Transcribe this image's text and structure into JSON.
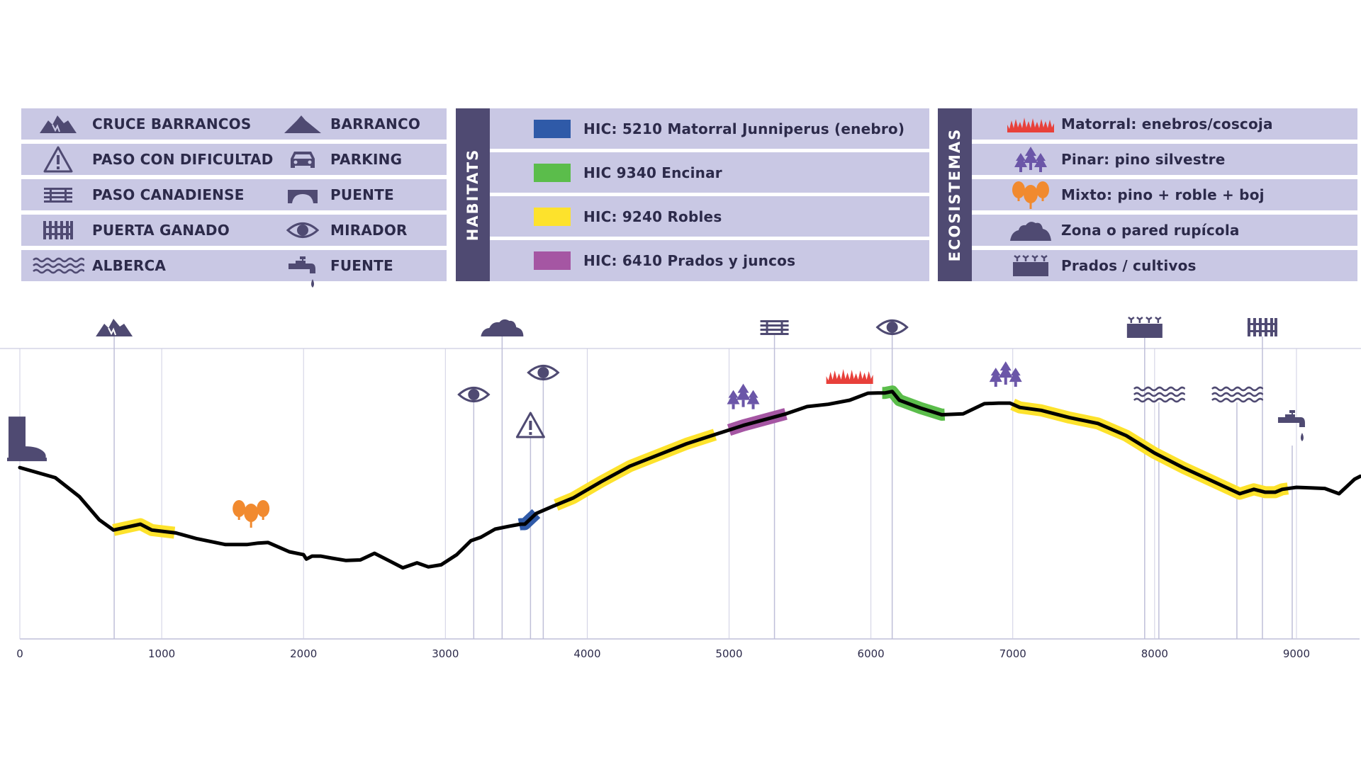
{
  "colors": {
    "panel": "#c9c8e4",
    "tab": "#4f4a72",
    "icon": "#4f4a72",
    "profile": "#000000",
    "robles": "#fde22c",
    "encinar": "#5bbd4b",
    "matorral_juniperus": "#2f5aa8",
    "prados_juncos": "#a556a3",
    "matorral_eco": "#e8403a",
    "mixto": "#f18a2f",
    "grid": "#bfbfd8"
  },
  "legend_points": [
    {
      "icon": "cruce-barrancos-icon",
      "label": "CRUCE BARRANCOS"
    },
    {
      "icon": "paso-dificultad-icon",
      "label": "PASO CON DIFICULTAD"
    },
    {
      "icon": "paso-canadiense-icon",
      "label": "PASO CANADIENSE"
    },
    {
      "icon": "puerta-ganado-icon",
      "label": "PUERTA GANADO"
    },
    {
      "icon": "alberca-icon",
      "label": "ALBERCA"
    },
    {
      "icon": "barranco-icon",
      "label": "BARRANCO"
    },
    {
      "icon": "parking-icon",
      "label": "PARKING"
    },
    {
      "icon": "puente-icon",
      "label": "PUENTE"
    },
    {
      "icon": "mirador-icon",
      "label": "MIRADOR"
    },
    {
      "icon": "fuente-icon",
      "label": "FUENTE"
    }
  ],
  "habitats": {
    "title": "HABITATS",
    "items": [
      {
        "label": "HIC: 5210 Matorral Junniperus (enebro)",
        "color": "#2f5aa8"
      },
      {
        "label": "HIC 9340 Encinar",
        "color": "#5bbd4b"
      },
      {
        "label": "HIC: 9240 Robles",
        "color": "#fde22c"
      },
      {
        "label": "HIC: 6410 Prados y juncos",
        "color": "#a556a3"
      }
    ]
  },
  "ecosistemas": {
    "title": "ECOSISTEMAS",
    "items": [
      {
        "icon": "matorral-icon",
        "label": "Matorral: enebros/coscoja"
      },
      {
        "icon": "pinar-icon",
        "label": "Pinar: pino silvestre"
      },
      {
        "icon": "mixto-icon",
        "label": "Mixto: pino + roble + boj"
      },
      {
        "icon": "rupicola-icon",
        "label": "Zona o pared rupícola"
      },
      {
        "icon": "prados-icon",
        "label": "Prados / cultivos"
      }
    ]
  },
  "chart_data": {
    "type": "line",
    "title": "",
    "xlabel": "",
    "ylabel": "",
    "xlim": [
      0,
      9450
    ],
    "x_ticks": [
      0,
      1000,
      2000,
      3000,
      4000,
      5000,
      6000,
      7000,
      8000,
      9000
    ],
    "x_tick_labels": [
      "0",
      "1000",
      "2000",
      "3000",
      "4000",
      "5000",
      "6000",
      "7000",
      "8000",
      "9000"
    ],
    "profile": [
      [
        0,
        0.59
      ],
      [
        250,
        0.555
      ],
      [
        420,
        0.49
      ],
      [
        560,
        0.41
      ],
      [
        660,
        0.375
      ],
      [
        850,
        0.395
      ],
      [
        930,
        0.375
      ],
      [
        1100,
        0.365
      ],
      [
        1250,
        0.345
      ],
      [
        1450,
        0.325
      ],
      [
        1600,
        0.325
      ],
      [
        1680,
        0.33
      ],
      [
        1750,
        0.332
      ],
      [
        1900,
        0.3
      ],
      [
        2000,
        0.29
      ],
      [
        2020,
        0.275
      ],
      [
        2060,
        0.285
      ],
      [
        2120,
        0.285
      ],
      [
        2200,
        0.278
      ],
      [
        2300,
        0.27
      ],
      [
        2400,
        0.272
      ],
      [
        2500,
        0.295
      ],
      [
        2600,
        0.27
      ],
      [
        2700,
        0.245
      ],
      [
        2800,
        0.262
      ],
      [
        2880,
        0.248
      ],
      [
        2970,
        0.255
      ],
      [
        3080,
        0.29
      ],
      [
        3180,
        0.338
      ],
      [
        3250,
        0.35
      ],
      [
        3350,
        0.378
      ],
      [
        3450,
        0.388
      ],
      [
        3530,
        0.395
      ],
      [
        3560,
        0.395
      ],
      [
        3640,
        0.432
      ],
      [
        3760,
        0.457
      ],
      [
        3900,
        0.485
      ],
      [
        4100,
        0.542
      ],
      [
        4300,
        0.595
      ],
      [
        4700,
        0.672
      ],
      [
        5100,
        0.735
      ],
      [
        5400,
        0.775
      ],
      [
        5550,
        0.8
      ],
      [
        5700,
        0.808
      ],
      [
        5850,
        0.822
      ],
      [
        5980,
        0.846
      ],
      [
        6050,
        0.847
      ],
      [
        6100,
        0.847
      ],
      [
        6150,
        0.852
      ],
      [
        6200,
        0.822
      ],
      [
        6350,
        0.795
      ],
      [
        6500,
        0.772
      ],
      [
        6650,
        0.775
      ],
      [
        6800,
        0.81
      ],
      [
        6900,
        0.812
      ],
      [
        6980,
        0.812
      ],
      [
        7050,
        0.797
      ],
      [
        7200,
        0.787
      ],
      [
        7400,
        0.762
      ],
      [
        7600,
        0.742
      ],
      [
        7800,
        0.7
      ],
      [
        8000,
        0.64
      ],
      [
        8200,
        0.59
      ],
      [
        8400,
        0.545
      ],
      [
        8600,
        0.5
      ],
      [
        8700,
        0.515
      ],
      [
        8780,
        0.505
      ],
      [
        8850,
        0.505
      ],
      [
        8900,
        0.515
      ],
      [
        9000,
        0.522
      ],
      [
        9100,
        0.52
      ],
      [
        9200,
        0.518
      ],
      [
        9300,
        0.5
      ],
      [
        9410,
        0.55
      ],
      [
        9450,
        0.56
      ]
    ],
    "habitat_segments": [
      {
        "habitat": "HIC: 9240 Robles",
        "from": 660,
        "to": 1090
      },
      {
        "habitat": "HIC: 5210 Matorral Junniperus (enebro)",
        "from": 3520,
        "to": 3640
      },
      {
        "habitat": "HIC: 9240 Robles",
        "from": 3780,
        "to": 4900
      },
      {
        "habitat": "HIC: 6410 Prados y juncos",
        "from": 5000,
        "to": 5400
      },
      {
        "habitat": "HIC 9340 Encinar",
        "from": 6080,
        "to": 6520
      },
      {
        "habitat": "HIC: 9240 Robles",
        "from": 7000,
        "to": 8940
      }
    ],
    "point_markers": [
      {
        "type": "cruce-barrancos-icon",
        "x": 665,
        "level": "top"
      },
      {
        "type": "mirador-icon",
        "x": 3200,
        "level": "low"
      },
      {
        "type": "barranco-icon",
        "x": 3400,
        "level": "top"
      },
      {
        "type": "paso-dificultad-icon",
        "x": 3600,
        "level": "low2"
      },
      {
        "type": "mirador-icon",
        "x": 3690,
        "level": "mid"
      },
      {
        "type": "paso-canadiense-icon",
        "x": 5320,
        "level": "top"
      },
      {
        "type": "mirador-icon",
        "x": 6150,
        "level": "top"
      },
      {
        "type": "prados-icon",
        "x": 7930,
        "level": "top"
      },
      {
        "type": "alberca-icon",
        "x": 8030,
        "level": "low"
      },
      {
        "type": "alberca-icon",
        "x": 8580,
        "level": "low"
      },
      {
        "type": "puerta-ganado-icon",
        "x": 8760,
        "level": "top"
      },
      {
        "type": "fuente-icon",
        "x": 8970,
        "level": "low3"
      }
    ],
    "ecosystem_markers": [
      {
        "type": "mixto-icon",
        "x": 1630
      },
      {
        "type": "pinar-icon",
        "x": 5100
      },
      {
        "type": "matorral-icon",
        "x": 5850
      },
      {
        "type": "pinar-icon",
        "x": 6950
      }
    ],
    "start_marker": "boot-icon",
    "grid": true
  }
}
